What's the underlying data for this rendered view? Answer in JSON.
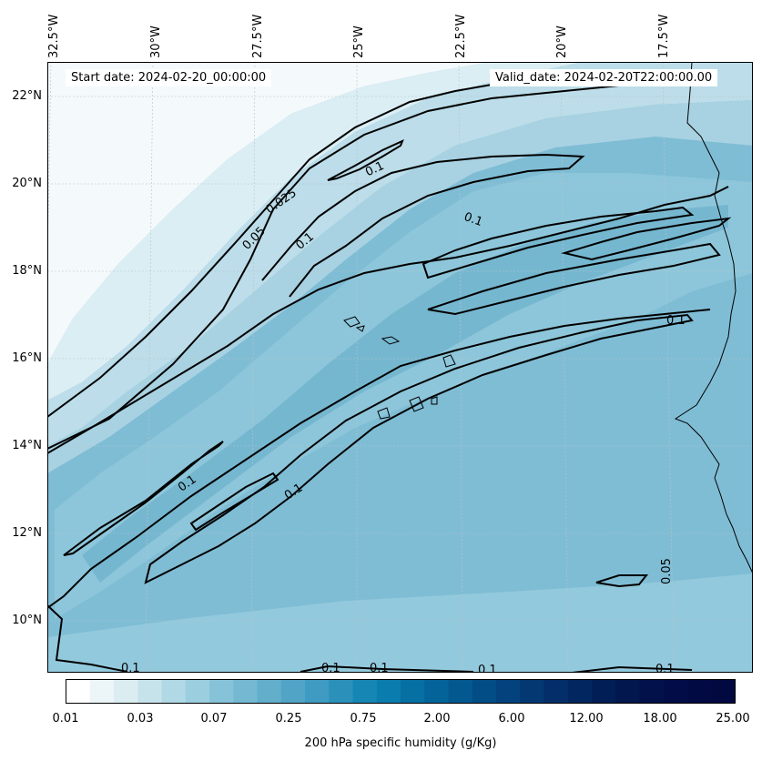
{
  "map": {
    "start_date": "Start date: 2024-02-20_00:00:00",
    "valid_date": "Valid_date: 2024-02-20T22:00:00.00",
    "lat_labels": [
      "22°N",
      "20°N",
      "18°N",
      "16°N",
      "14°N",
      "12°N",
      "10°N"
    ],
    "lon_labels": [
      "32.5°W",
      "30°W",
      "27.5°W",
      "25°W",
      "22.5°W",
      "20°W",
      "17.5°W"
    ],
    "contour_labels": [
      "0.025",
      "0.05",
      "0.1",
      "0.1",
      "0.1",
      "0.1",
      "0.1",
      "0.1",
      "0.05",
      "0.1",
      "0.1",
      "0.1",
      "0.1",
      "0.1"
    ]
  },
  "colorbar": {
    "title": "200 hPa specific humidity (g/Kg)",
    "tick_labels": [
      "0.01",
      "0.03",
      "0.07",
      "0.25",
      "0.75",
      "2.00",
      "6.00",
      "12.00",
      "18.00",
      "25.00"
    ],
    "colors": [
      "#ffffff",
      "#ecf5f8",
      "#dcedf2",
      "#c6e3ec",
      "#b0d8e5",
      "#9bcedf",
      "#87c3d8",
      "#74b9d1",
      "#62aecb",
      "#52a4c6",
      "#3f9bc1",
      "#2b91bb",
      "#1687b5",
      "#0a7cae",
      "#0670a3",
      "#04649a",
      "#045890",
      "#034d86",
      "#03427c",
      "#033873",
      "#032e69",
      "#02265f",
      "#021e56",
      "#02174d",
      "#02114a",
      "#020c47",
      "#020a44",
      "#020840"
    ]
  }
}
